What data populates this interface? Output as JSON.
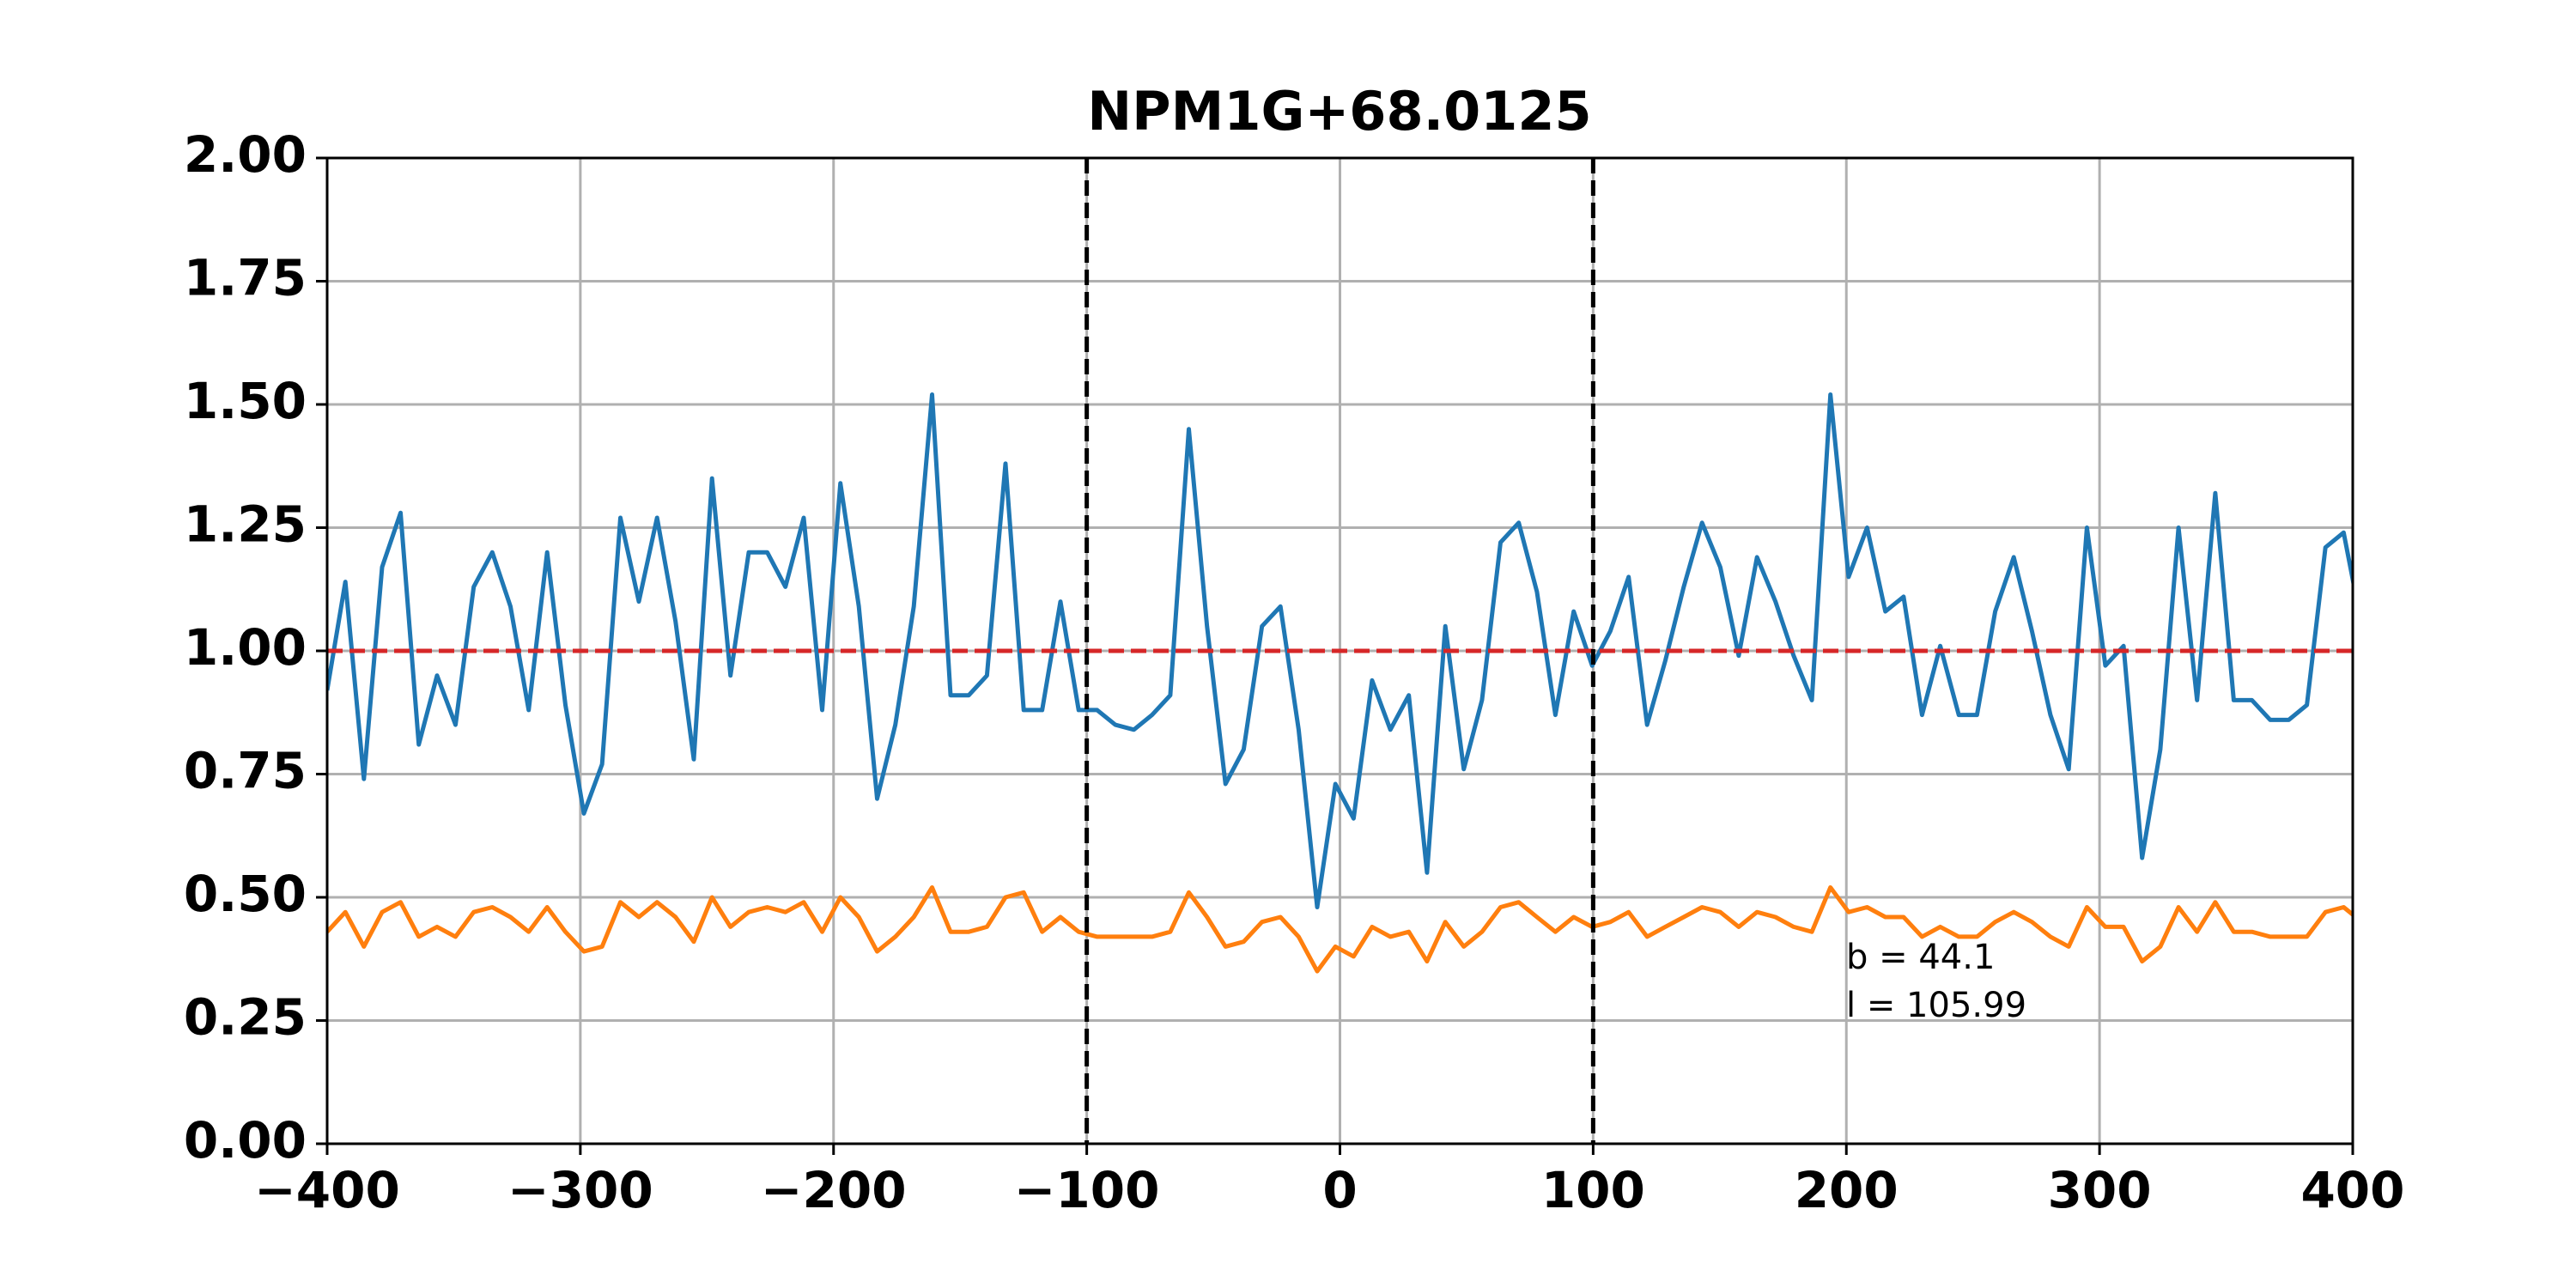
{
  "chart_data": {
    "type": "line",
    "title": "NPM1G+68.0125",
    "x": [
      -400,
      -392.8,
      -385.5,
      -378.3,
      -371.0,
      -363.8,
      -356.6,
      -349.3,
      -342.1,
      -334.8,
      -327.6,
      -320.4,
      -313.1,
      -305.9,
      -298.6,
      -291.4,
      -284.2,
      -276.9,
      -269.7,
      -262.4,
      -255.2,
      -248.0,
      -240.7,
      -233.5,
      -226.2,
      -219.0,
      -211.8,
      -204.5,
      -197.3,
      -190.0,
      -182.8,
      -175.6,
      -168.3,
      -161.1,
      -153.8,
      -146.6,
      -139.4,
      -132.1,
      -124.9,
      -117.6,
      -110.4,
      -103.2,
      -95.9,
      -88.7,
      -81.4,
      -74.2,
      -67.0,
      -59.7,
      -52.5,
      -45.2,
      -38.0,
      -30.8,
      -23.5,
      -16.3,
      -9.0,
      -1.8,
      5.4,
      12.7,
      19.9,
      27.2,
      34.4,
      41.6,
      48.9,
      56.1,
      63.4,
      70.6,
      77.8,
      85.1,
      92.3,
      99.6,
      106.8,
      114.0,
      121.3,
      128.5,
      135.8,
      143.0,
      150.2,
      157.5,
      164.7,
      172.0,
      179.2,
      186.4,
      193.7,
      200.9,
      208.2,
      215.4,
      222.6,
      229.9,
      237.1,
      244.4,
      251.6,
      258.8,
      266.1,
      273.3,
      280.6,
      287.8,
      295.0,
      302.3,
      309.5,
      316.8,
      324.0,
      331.2,
      338.5,
      345.7,
      353.0,
      360.2,
      367.4,
      374.7,
      381.9,
      389.2,
      396.4,
      403.6
    ],
    "series": [
      {
        "color": "#1f77b4",
        "values": [
          0.92,
          1.14,
          0.74,
          1.17,
          1.28,
          0.81,
          0.95,
          0.85,
          1.13,
          1.2,
          1.09,
          0.88,
          1.2,
          0.89,
          0.67,
          0.77,
          1.27,
          1.1,
          1.27,
          1.06,
          0.78,
          1.35,
          0.95,
          1.2,
          1.2,
          1.13,
          1.27,
          0.88,
          1.34,
          1.09,
          0.7,
          0.85,
          1.09,
          1.52,
          0.91,
          0.91,
          0.95,
          1.38,
          0.88,
          0.88,
          1.1,
          0.88,
          0.88,
          0.85,
          0.84,
          0.87,
          0.91,
          1.45,
          1.05,
          0.73,
          0.8,
          1.05,
          1.09,
          0.84,
          0.48,
          0.73,
          0.66,
          0.94,
          0.84,
          0.91,
          0.55,
          1.05,
          0.76,
          0.9,
          1.22,
          1.26,
          1.12,
          0.87,
          1.08,
          0.97,
          1.04,
          1.15,
          0.85,
          0.98,
          1.13,
          1.26,
          1.17,
          0.99,
          1.19,
          1.1,
          0.99,
          0.9,
          1.52,
          1.15,
          1.25,
          1.08,
          1.11,
          0.87,
          1.01,
          0.87,
          0.87,
          1.08,
          1.19,
          1.04,
          0.87,
          0.76,
          1.25,
          0.97,
          1.01,
          0.58,
          0.8,
          1.25,
          0.9,
          1.32,
          0.9,
          0.9,
          0.86,
          0.86,
          0.89,
          1.21,
          1.24,
          1.05
        ]
      },
      {
        "color": "#ff7f0e",
        "values": [
          0.43,
          0.47,
          0.4,
          0.47,
          0.49,
          0.42,
          0.44,
          0.42,
          0.47,
          0.48,
          0.46,
          0.43,
          0.48,
          0.43,
          0.39,
          0.4,
          0.49,
          0.46,
          0.49,
          0.46,
          0.41,
          0.5,
          0.44,
          0.47,
          0.48,
          0.47,
          0.49,
          0.43,
          0.5,
          0.46,
          0.39,
          0.42,
          0.46,
          0.52,
          0.43,
          0.43,
          0.44,
          0.5,
          0.51,
          0.43,
          0.46,
          0.43,
          0.42,
          0.42,
          0.42,
          0.42,
          0.43,
          0.51,
          0.46,
          0.4,
          0.41,
          0.45,
          0.46,
          0.42,
          0.35,
          0.4,
          0.38,
          0.44,
          0.42,
          0.43,
          0.37,
          0.45,
          0.4,
          0.43,
          0.48,
          0.49,
          0.46,
          0.43,
          0.46,
          0.44,
          0.45,
          0.47,
          0.42,
          0.44,
          0.46,
          0.48,
          0.47,
          0.44,
          0.47,
          0.46,
          0.44,
          0.43,
          0.52,
          0.47,
          0.48,
          0.46,
          0.46,
          0.42,
          0.44,
          0.42,
          0.42,
          0.45,
          0.47,
          0.45,
          0.42,
          0.4,
          0.48,
          0.44,
          0.44,
          0.37,
          0.4,
          0.48,
          0.43,
          0.49,
          0.43,
          0.43,
          0.42,
          0.42,
          0.42,
          0.47,
          0.48,
          0.45
        ]
      }
    ],
    "hline": {
      "value": 1,
      "color": "#d62728"
    },
    "vlines": [
      -100,
      100
    ],
    "annotations": [
      "b = 44.1",
      "l = 105.99"
    ],
    "xlim": [
      -400,
      400
    ],
    "xticks": [
      {
        "value": -400,
        "label": "−400"
      },
      {
        "value": -300,
        "label": "−300"
      },
      {
        "value": -200,
        "label": "−200"
      },
      {
        "value": -100,
        "label": "−100"
      },
      0,
      100,
      200,
      300,
      400
    ],
    "ylim": [
      0,
      2
    ],
    "yticks": [
      {
        "value": 0,
        "label": "0.00"
      },
      {
        "value": 0.25,
        "label": "0.25"
      },
      {
        "value": 0.5,
        "label": "0.50"
      },
      {
        "value": 0.75,
        "label": "0.75"
      },
      {
        "value": 1,
        "label": "1.00"
      },
      {
        "value": 1.25,
        "label": "1.25"
      },
      {
        "value": 1.5,
        "label": "1.50"
      },
      {
        "value": 1.75,
        "label": "1.75"
      },
      {
        "value": 2,
        "label": "2.00"
      }
    ],
    "grid": true
  }
}
